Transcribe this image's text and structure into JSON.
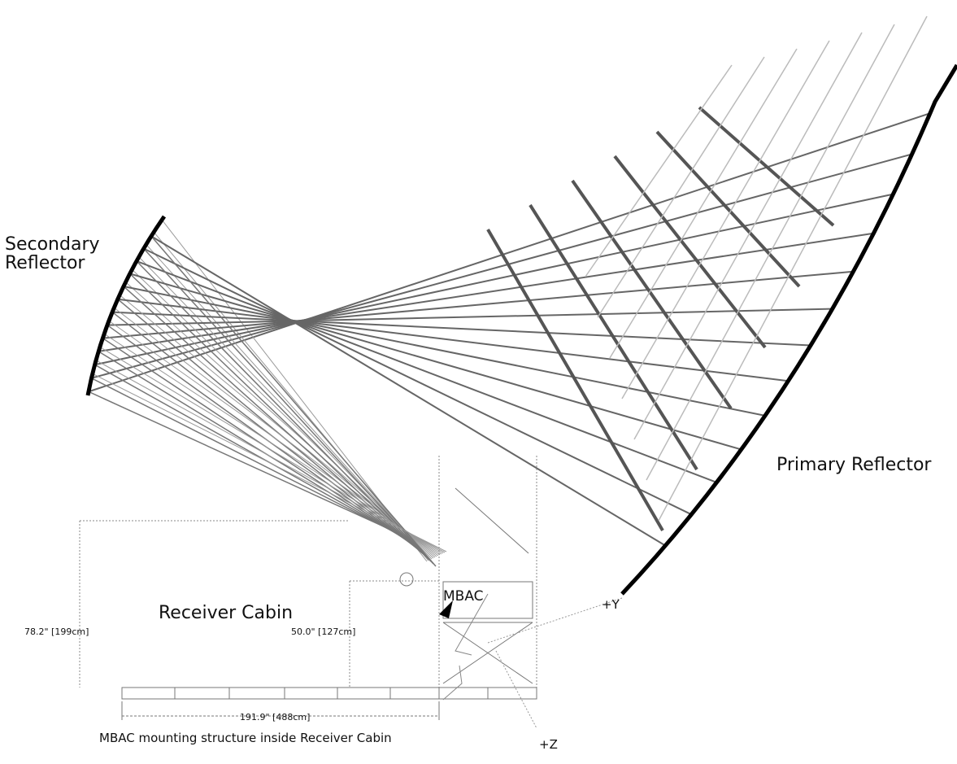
{
  "labels": {
    "secondary_reflector": [
      "Secondary",
      "Reflector"
    ],
    "primary_reflector": "Primary Reflector",
    "receiver_cabin": "Receiver Cabin",
    "mbac": "MBAC",
    "plus_y": "+Y",
    "plus_z": "+Z"
  },
  "dimensions": {
    "cabin_height": "78.2\" [199cm]",
    "step_height": "50.0\" [127cm]",
    "cabin_length": "191.9\" [488cm]"
  },
  "caption": "MBAC mounting structure inside Receiver Cabin"
}
